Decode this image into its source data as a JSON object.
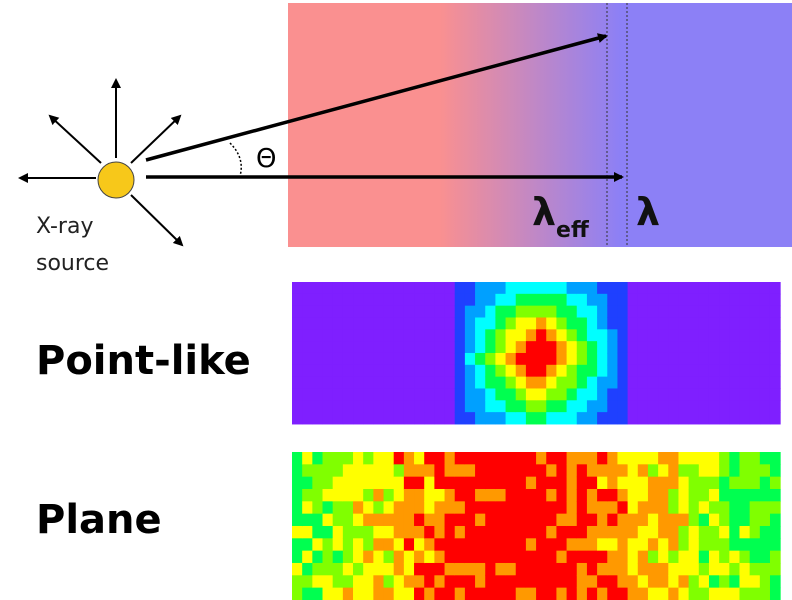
{
  "source_label": {
    "line1": "X-ray",
    "line2": "source"
  },
  "angle_label": "Θ",
  "lambda_eff": {
    "symbol": "λ",
    "subscript": "eff"
  },
  "lambda": "λ",
  "rows": {
    "point": "Point-like",
    "plane": "Plane"
  }
}
